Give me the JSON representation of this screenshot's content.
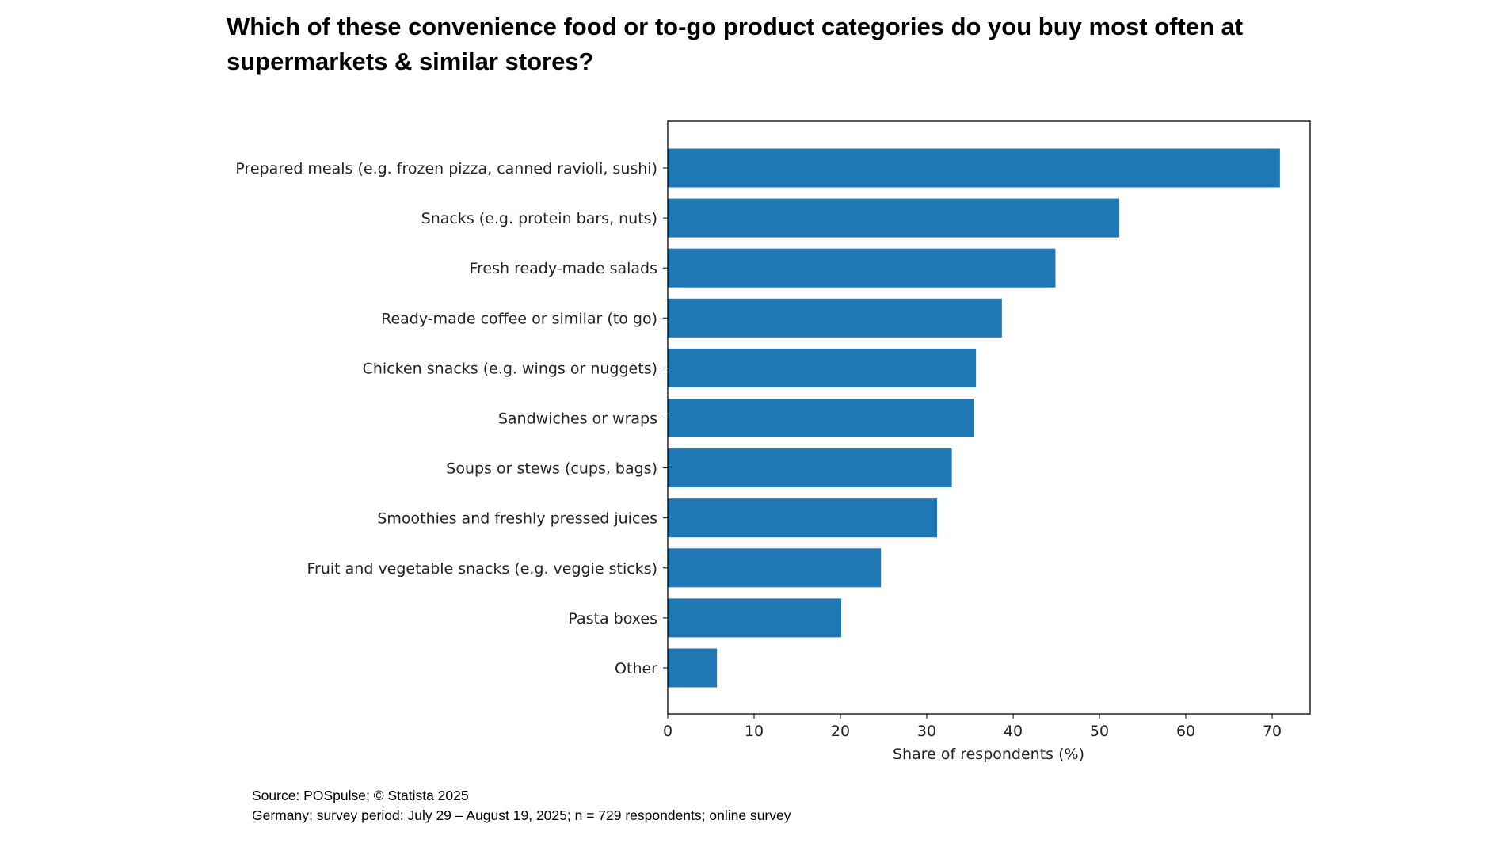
{
  "chart_data": {
    "type": "bar",
    "orientation": "horizontal",
    "title": "Which of these convenience food or to-go product categories do you buy most often at supermarkets & similar stores?",
    "xlabel": "Share of respondents (%)",
    "ylabel": "",
    "categories": [
      "Prepared meals (e.g. frozen pizza, canned ravioli, sushi)",
      "Snacks (e.g. protein bars, nuts)",
      "Fresh ready-made salads",
      "Ready-made coffee or similar (to go)",
      "Chicken snacks (e.g. wings or nuggets)",
      "Sandwiches or wraps",
      "Soups or stews (cups, bags)",
      "Smoothies and freshly pressed juices",
      "Fruit and vegetable snacks (e.g. veggie sticks)",
      "Pasta boxes",
      "Other"
    ],
    "values": [
      70.9,
      52.3,
      44.9,
      38.7,
      35.7,
      35.5,
      32.9,
      31.2,
      24.7,
      20.1,
      5.7
    ],
    "xlim": [
      0,
      74.4
    ],
    "xticks": [
      "0",
      "10",
      "20",
      "30",
      "40",
      "50",
      "60",
      "70"
    ],
    "grid": false,
    "bar_color": "#1f77b4"
  },
  "footer": {
    "source": "Source: POSpulse; © Statista 2025",
    "note": "Germany; survey period: July 29 – August 19, 2025; n = 729 respondents; online survey"
  }
}
